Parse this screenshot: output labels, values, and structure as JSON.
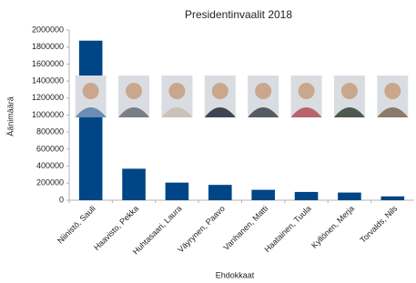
{
  "chart_data": {
    "type": "bar",
    "title": "Presidentinvaalit 2018",
    "x_label": "Ehdokkaat",
    "y_label": "Äänimäärä",
    "categories": [
      "Niinistö, Sauli",
      "Haavisto, Pekka",
      "Huhtasaari, Laura",
      "Väyrynen, Paavo",
      "Vanhanen, Matti",
      "Haatainen, Tuula",
      "Kyllönen, Merja",
      "Torvalds, Nils"
    ],
    "values": [
      1875000,
      370000,
      207000,
      180000,
      122000,
      97000,
      90000,
      45000
    ],
    "color": "#004586",
    "ylim": [
      0,
      2000000
    ],
    "yticks": [
      0,
      200000,
      400000,
      600000,
      800000,
      1000000,
      1200000,
      1400000,
      1600000,
      1800000,
      2000000
    ],
    "grid": false
  }
}
